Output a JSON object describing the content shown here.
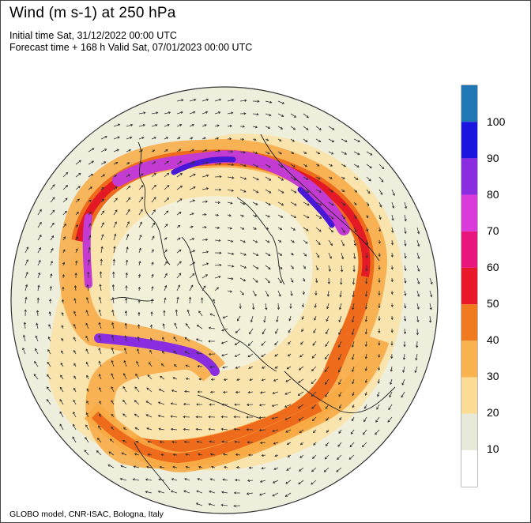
{
  "header": {
    "title": "Wind (m s-1) at 250 hPa",
    "initial_time": "Initial time Sat, 31/12/2022 00:00 UTC",
    "forecast_time": "Forecast time + 168 h Valid Sat, 07/01/2023 00:00 UTC"
  },
  "footer": {
    "credit": "GLOBO model, CNR-ISAC, Bologna, Italy"
  },
  "colorbar": {
    "labels": [
      "100",
      "90",
      "80",
      "70",
      "60",
      "50",
      "40",
      "30",
      "20",
      "10"
    ],
    "colors": [
      "#ffffff",
      "#e6e8d8",
      "#fbdc94",
      "#f8b24f",
      "#f07a1f",
      "#e8182a",
      "#e8157c",
      "#d93ad9",
      "#8a2ce0",
      "#1a16e0",
      "#1f78b4"
    ]
  },
  "map": {
    "projection": "polar-stereographic-north",
    "colors": {
      "background": "#eeeedd",
      "calm": "#ffffff",
      "band30": "#fbd68e",
      "band40": "#f7a944",
      "band50": "#ef6b1c",
      "band60": "#e31a25",
      "band80": "#c43bd4",
      "band90": "#4818d6",
      "coast": "#222222",
      "arrow": "#333333"
    }
  }
}
